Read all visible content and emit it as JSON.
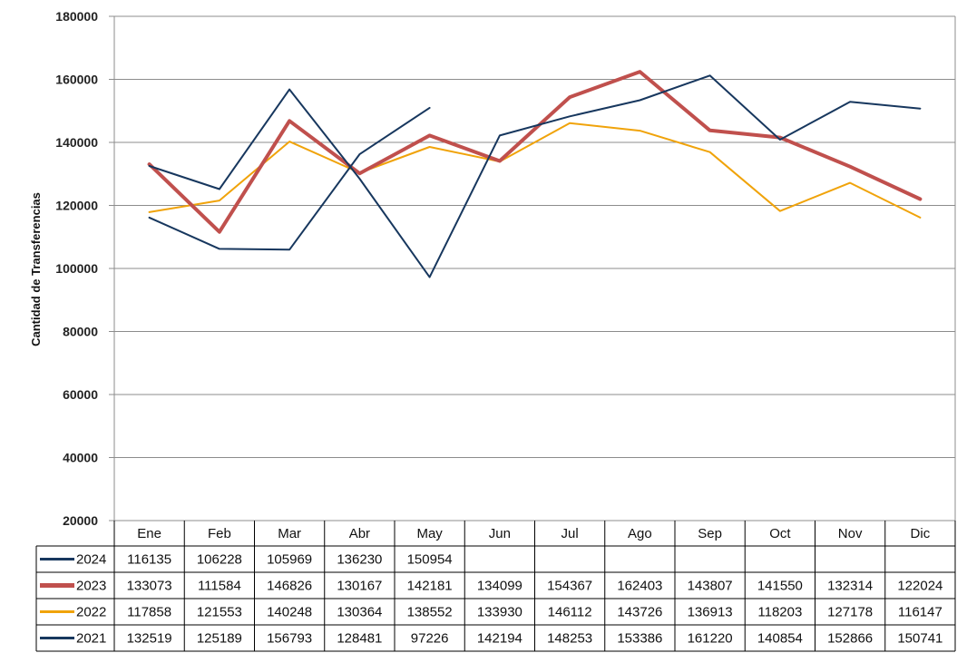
{
  "chart_data": {
    "type": "line",
    "title": "",
    "xlabel": "",
    "ylabel": "Cantidad de Transferencias",
    "categories": [
      "Ene",
      "Feb",
      "Mar",
      "Abr",
      "May",
      "Jun",
      "Jul",
      "Ago",
      "Sep",
      "Oct",
      "Nov",
      "Dic"
    ],
    "ylim": [
      20000,
      180000
    ],
    "yticks": [
      20000,
      40000,
      60000,
      80000,
      100000,
      120000,
      140000,
      160000,
      180000
    ],
    "ytick_labels": [
      "20000",
      "40000",
      "60000",
      "80000",
      "100000",
      "120000",
      "140000",
      "160000",
      "180000"
    ],
    "grid": true,
    "legend": "data-table-below",
    "series": [
      {
        "name": "2024",
        "color": "#17375e",
        "width": 2,
        "values": [
          116135,
          106228,
          105969,
          136230,
          150954,
          null,
          null,
          null,
          null,
          null,
          null,
          null
        ]
      },
      {
        "name": "2023",
        "color": "#c0504d",
        "width": 4,
        "values": [
          133073,
          111584,
          146826,
          130167,
          142181,
          134099,
          154367,
          162403,
          143807,
          141550,
          132314,
          122024
        ]
      },
      {
        "name": "2022",
        "color": "#f0a30a",
        "width": 2,
        "values": [
          117858,
          121553,
          140248,
          130364,
          138552,
          133930,
          146112,
          143726,
          136913,
          118203,
          127178,
          116147
        ]
      },
      {
        "name": "2021",
        "color": "#17375e",
        "width": 2,
        "values": [
          132519,
          125189,
          156793,
          128481,
          97226,
          142194,
          148253,
          153386,
          161220,
          140854,
          152866,
          150741
        ]
      }
    ]
  }
}
